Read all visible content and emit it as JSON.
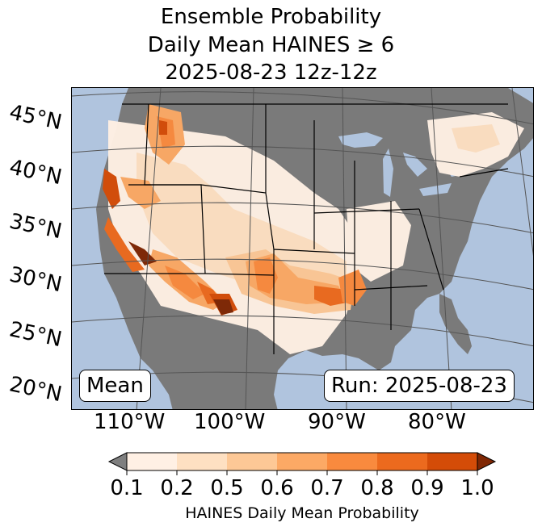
{
  "title": {
    "line1": "Ensemble Probability",
    "line2": "Daily Mean HAINES ≥ 6",
    "line3": "2025-08-23 12z-12z"
  },
  "map": {
    "lat_labels": [
      "45°N",
      "40°N",
      "35°N",
      "30°N",
      "25°N",
      "20°N"
    ],
    "lon_labels": [
      "110°W",
      "100°W",
      "90°W",
      "80°W"
    ],
    "colors": {
      "ocean": "#b0c4de",
      "no_data_land": "#7a7a7a",
      "grid": "#555555",
      "borders": "#000000"
    },
    "stat_label": "Mean",
    "run_label": "Run: 2025-08-23"
  },
  "colorbar": {
    "ticks": [
      "0.1",
      "0.2",
      "0.5",
      "0.6",
      "0.7",
      "0.8",
      "0.9",
      "1.0"
    ],
    "bin_colors": [
      "#fff0e4",
      "#fee0c2",
      "#fdc896",
      "#fca965",
      "#f98a3e",
      "#ec6a1e",
      "#d44c08"
    ],
    "under_color": "#7f7f7f",
    "over_color": "#7f2704",
    "label": "HAINES Daily Mean Probability"
  }
}
